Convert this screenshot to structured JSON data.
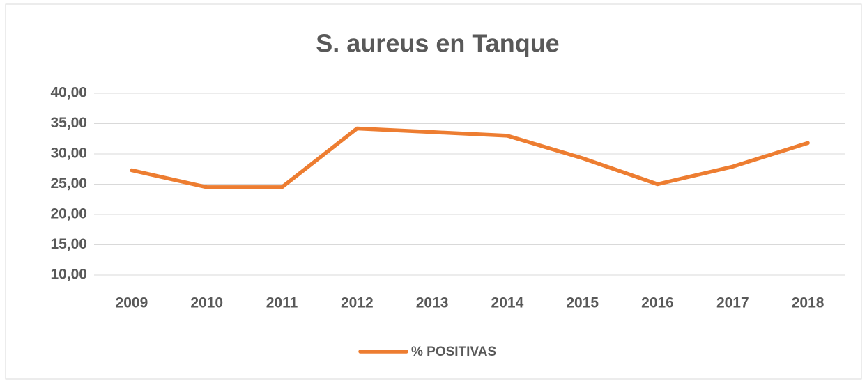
{
  "chart_data": {
    "type": "line",
    "title": "S. aureus en Tanque",
    "categories": [
      "2009",
      "2010",
      "2011",
      "2012",
      "2013",
      "2014",
      "2015",
      "2016",
      "2017",
      "2018"
    ],
    "series": [
      {
        "name": "% POSITIVAS",
        "color": "#ed7d31",
        "values": [
          27.3,
          24.5,
          24.5,
          34.2,
          33.6,
          33.0,
          29.3,
          25.0,
          27.9,
          31.8
        ]
      }
    ],
    "ylim": [
      10,
      40
    ],
    "yticks": [
      {
        "value": 10,
        "label": "10,00"
      },
      {
        "value": 15,
        "label": "15,00"
      },
      {
        "value": 20,
        "label": "20,00"
      },
      {
        "value": 25,
        "label": "25,00"
      },
      {
        "value": 30,
        "label": "30,00"
      },
      {
        "value": 35,
        "label": "35,00"
      },
      {
        "value": 40,
        "label": "40,00"
      }
    ],
    "grid": true,
    "legend": "bottom"
  }
}
